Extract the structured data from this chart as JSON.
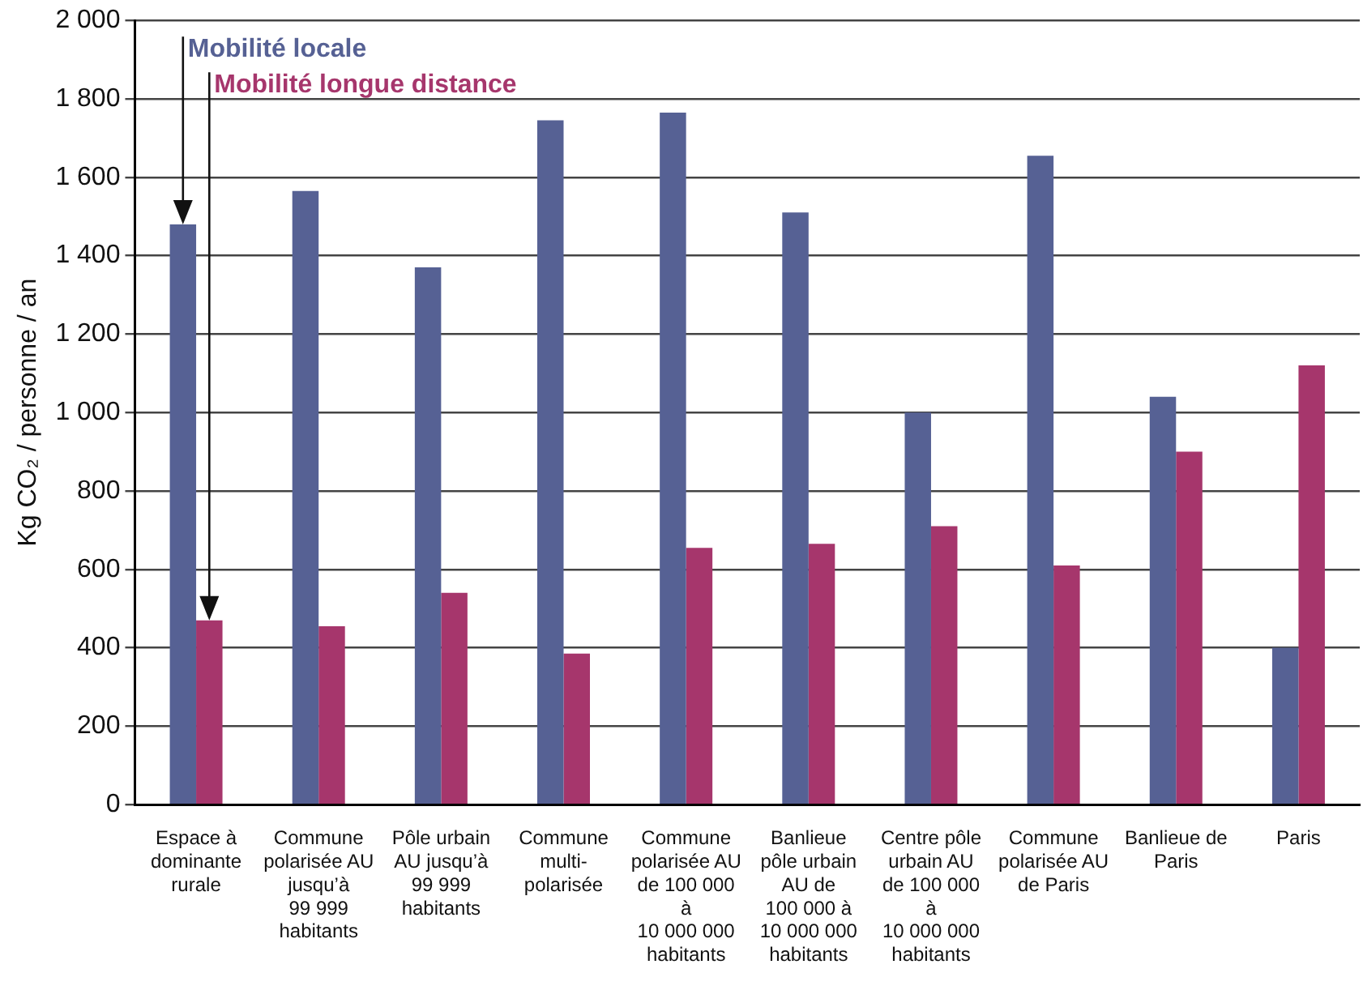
{
  "chart_data": {
    "type": "bar",
    "ylabel": "Kg CO₂ / personne / an",
    "categories": [
      "Espace à dominante rurale",
      "Commune polarisée AU jusqu’à 99 999 habitants",
      "Pôle urbain AU jusqu’à 99 999 habitants",
      "Commune multi-polarisée",
      "Commune polarisée AU de 100 000 à 10 000 000 habitants",
      "Banlieue pôle urbain AU de 100 000 à 10 000 000 habitants",
      "Centre pôle urbain AU de 100 000 à 10 000 000 habitants",
      "Commune polarisée AU de Paris",
      "Banlieue de Paris",
      "Paris"
    ],
    "series": [
      {
        "name": "Mobilité locale",
        "color": "#566194",
        "values": [
          1480,
          1565,
          1370,
          1745,
          1765,
          1510,
          1000,
          1655,
          1040,
          400
        ]
      },
      {
        "name": "Mobilité longue distance",
        "color": "#a6366c",
        "values": [
          470,
          455,
          540,
          385,
          655,
          665,
          710,
          610,
          900,
          1120
        ]
      }
    ],
    "ylim": [
      0,
      2000
    ],
    "yticks": [
      {
        "value": 0,
        "label": "0"
      },
      {
        "value": 200,
        "label": "200"
      },
      {
        "value": 400,
        "label": "400"
      },
      {
        "value": 600,
        "label": "600"
      },
      {
        "value": 800,
        "label": "800"
      },
      {
        "value": 1000,
        "label": "1 000"
      },
      {
        "value": 1200,
        "label": "1 200"
      },
      {
        "value": 1400,
        "label": "1 400"
      },
      {
        "value": 1600,
        "label": "1 600"
      },
      {
        "value": 1800,
        "label": "1 800"
      },
      {
        "value": 2000,
        "label": "2 000"
      }
    ],
    "grid": "y",
    "legend": false
  }
}
